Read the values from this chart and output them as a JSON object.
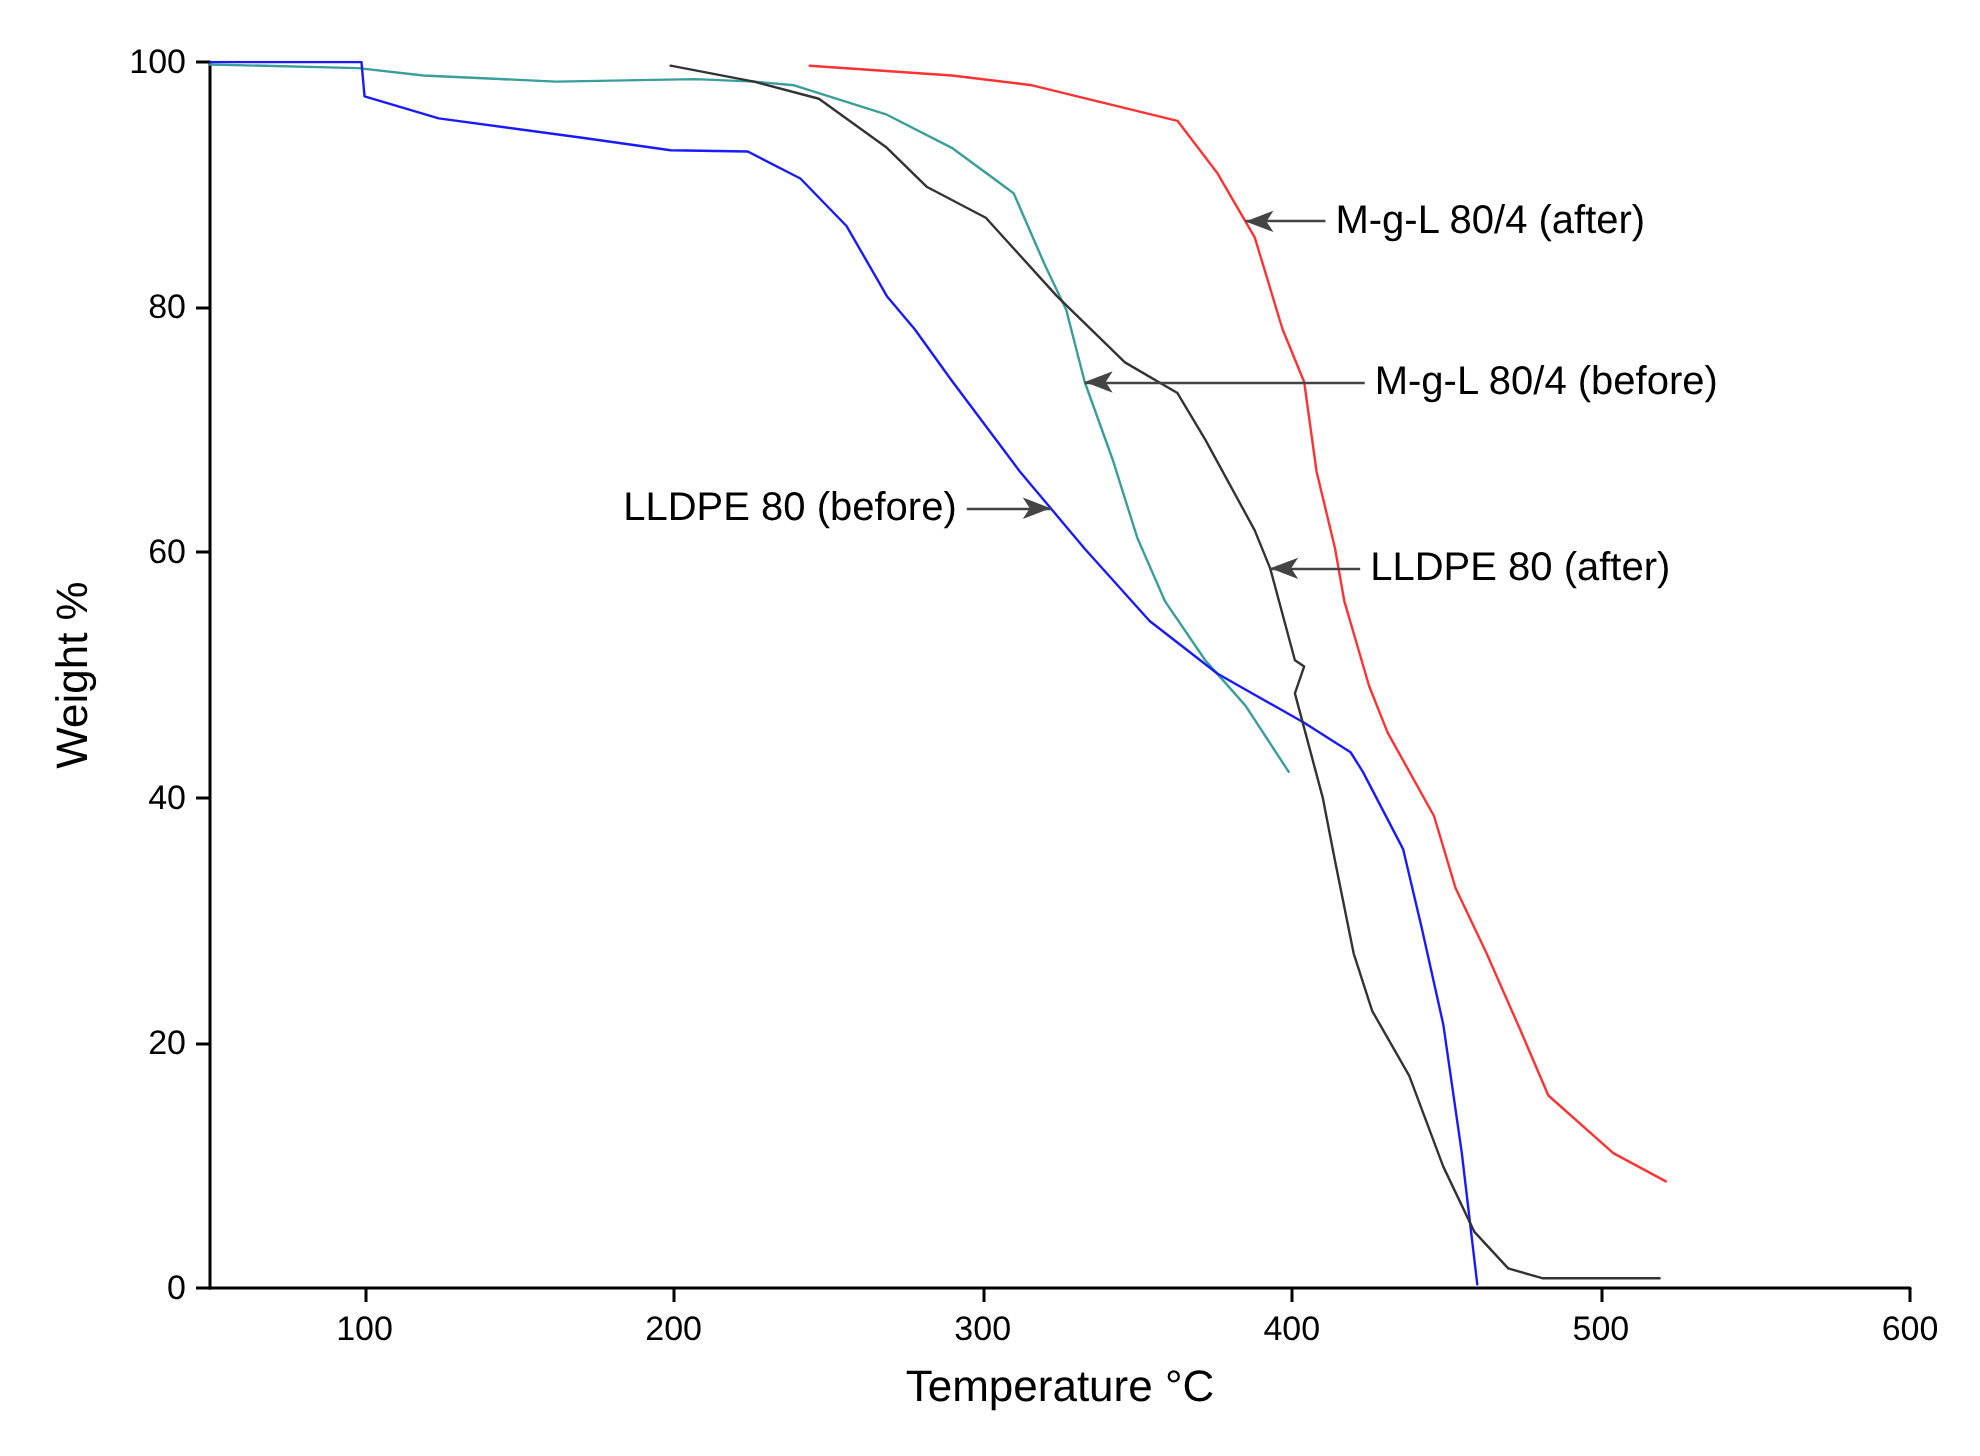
{
  "chart_data": {
    "type": "line",
    "xlabel": "Temperature °C",
    "ylabel": "Weight %",
    "xlim": [
      50,
      600
    ],
    "ylim": [
      0,
      100
    ],
    "xticks": [
      100,
      200,
      300,
      400,
      500,
      600
    ],
    "yticks": [
      0,
      20,
      40,
      60,
      80,
      100
    ],
    "grid": false,
    "marker": "none",
    "line_style": "solid",
    "series": [
      {
        "color": "#3a9e9a",
        "x": [
          50,
          98,
          119,
          162,
          207,
          226,
          239,
          269,
          290,
          310,
          320,
          327,
          333,
          342,
          350,
          359,
          372,
          385,
          399
        ],
        "values": [
          99.8,
          99.5,
          98.9,
          98.4,
          98.6,
          98.4,
          98.1,
          95.7,
          93,
          89.3,
          83.5,
          79.8,
          73.9,
          67.6,
          61.2,
          56,
          51.2,
          47.5,
          42.1
        ]
      },
      {
        "color": "#1a1aff",
        "x": [
          50,
          99,
          100,
          124,
          171,
          199,
          224,
          241,
          256,
          269,
          278,
          290,
          312,
          322,
          333,
          354,
          376,
          404,
          419,
          423,
          436,
          442,
          449,
          455,
          460
        ],
        "values": [
          100,
          100,
          97.2,
          95.4,
          93.8,
          92.8,
          92.7,
          90.5,
          86.6,
          80.9,
          78.2,
          74,
          66.6,
          63.6,
          60.3,
          54.4,
          50.1,
          46.1,
          43.7,
          42.1,
          35.8,
          29.4,
          21.5,
          11,
          0.3
        ]
      },
      {
        "color": "#333333",
        "x": [
          199,
          226,
          247,
          269,
          282,
          301,
          324,
          346,
          363,
          372,
          388,
          393,
          401,
          404,
          401,
          410,
          414,
          420,
          426,
          438,
          449,
          459,
          470,
          481,
          519
        ],
        "values": [
          99.7,
          98.4,
          97,
          93,
          89.8,
          87.3,
          80.9,
          75.5,
          73,
          69.2,
          61.8,
          58.7,
          51.2,
          50.7,
          48.5,
          40,
          34.8,
          27.3,
          22.6,
          17.3,
          9.9,
          4.6,
          1.6,
          0.8,
          0.8
        ]
      },
      {
        "color": "#ff3333",
        "x": [
          244,
          290,
          316,
          363,
          376,
          388,
          397,
          404,
          408,
          414,
          417,
          425,
          431,
          446,
          453,
          463,
          474,
          483,
          504,
          521
        ],
        "values": [
          99.7,
          98.9,
          98.1,
          95.2,
          90.9,
          85.7,
          78.2,
          73.9,
          66.6,
          60.3,
          56,
          49.1,
          45.3,
          38.5,
          32.6,
          27.3,
          21,
          15.7,
          11,
          8.7
        ]
      }
    ],
    "annotations": [
      {
        "text": "M-g-L 80/4 (after)",
        "x": 385,
        "y": 87
      },
      {
        "text": "M-g-L 80/4 (before)",
        "x": 333,
        "y": 73.9
      },
      {
        "text": "LLDPE 80 (before)",
        "x": 322,
        "y": 63.6
      },
      {
        "text": "LLDPE 80 (after)",
        "x": 393,
        "y": 58.7
      }
    ]
  }
}
